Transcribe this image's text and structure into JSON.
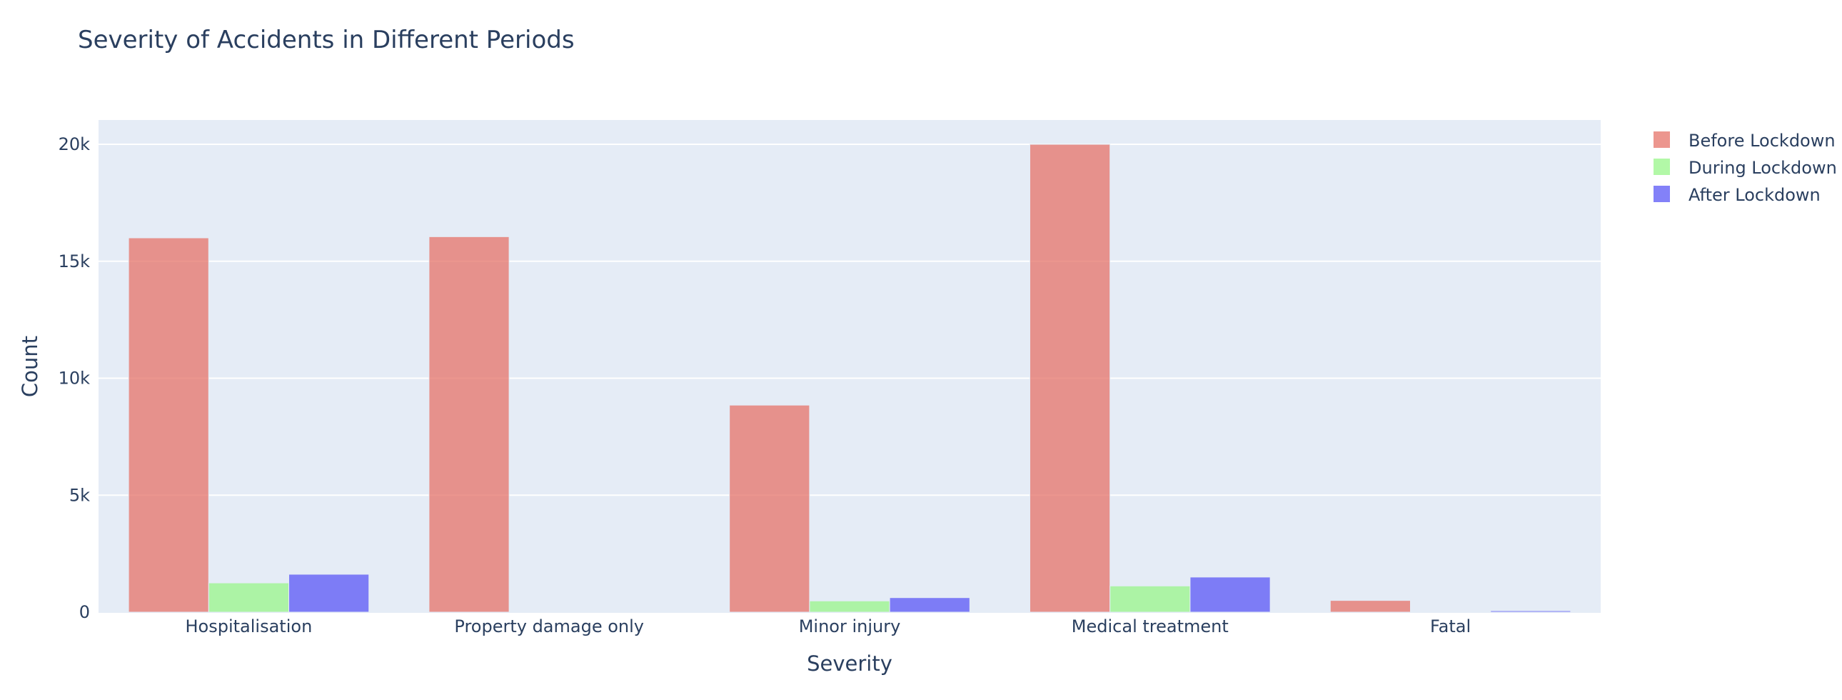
{
  "chart_data": {
    "type": "bar",
    "title": "Severity of Accidents in Different Periods",
    "xlabel": "Severity",
    "ylabel": "Count",
    "categories": [
      "Hospitalisation",
      "Property damage only",
      "Minor injury",
      "Medical treatment",
      "Fatal"
    ],
    "series": [
      {
        "name": "Before Lockdown",
        "color": "#e57368",
        "values": [
          16000,
          16050,
          8850,
          20000,
          500
        ]
      },
      {
        "name": "During Lockdown",
        "color": "#98f589",
        "values": [
          1250,
          0,
          480,
          1120,
          30
        ]
      },
      {
        "name": "After Lockdown",
        "color": "#5a57f5",
        "values": [
          1620,
          0,
          620,
          1500,
          60
        ]
      }
    ],
    "ylim": [
      0,
      21000
    ],
    "yticks": [
      0,
      5000,
      10000,
      15000,
      20000
    ],
    "ytick_labels": [
      "0",
      "5k",
      "10k",
      "15k",
      "20k"
    ],
    "legend_position": "top-right",
    "grid": true,
    "bar_opacity": 0.75,
    "plot_background": "#e5ecf6"
  }
}
